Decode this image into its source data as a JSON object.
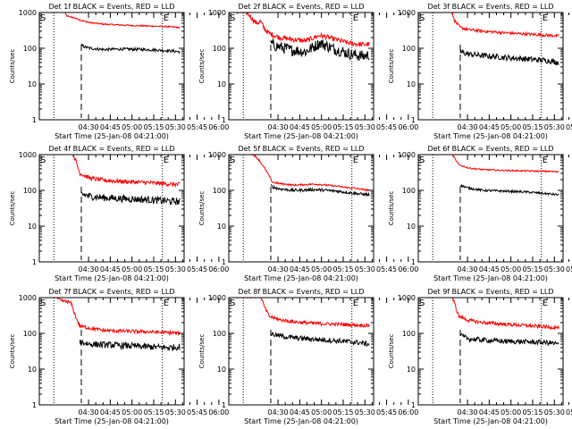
{
  "figure": {
    "ylabel": "Counts/sec",
    "xlabel": "Start Time (25-Jan-08 04:21:00)",
    "marker_start": "S",
    "marker_end": "E",
    "colors": {
      "events": "#000000",
      "lld": "#ff0000",
      "axes": "#000000"
    }
  },
  "chart_data": [
    {
      "type": "line",
      "title": "Det 1f BLACK = Events, RED = LLD",
      "x_ticks": [
        "04:30",
        "04:45",
        "05:00",
        "05:15",
        "05:30",
        "05:45",
        "06:00"
      ],
      "y_ticks": [
        "1",
        "10",
        "100",
        "1000"
      ],
      "ylim": [
        1,
        1000
      ],
      "y_scale": "log",
      "x_range_minutes": [
        -25,
        75
      ],
      "dotted_lines_minutes": [
        -15,
        60,
        75
      ],
      "dashed_line_minutes": 4,
      "series": [
        {
          "color": "red",
          "x_minutes": [
            -21,
            -8,
            -6,
            0,
            4,
            10,
            20,
            35,
            50,
            65,
            72
          ],
          "values": [
            1100,
            1100,
            800,
            700,
            600,
            520,
            470,
            440,
            420,
            400,
            380
          ],
          "noise": 0.02
        },
        {
          "color": "black",
          "x_minutes": [
            4,
            5,
            6,
            10,
            20,
            30,
            45,
            55,
            65,
            72
          ],
          "values": [
            120,
            118,
            110,
            100,
            92,
            95,
            93,
            90,
            85,
            80
          ],
          "noise": 0.04
        }
      ]
    },
    {
      "type": "line",
      "title": "Det 2f BLACK = Events, RED = LLD",
      "x_ticks": [
        "04:30",
        "04:45",
        "05:00",
        "05:15",
        "05:30",
        "05:45",
        "06:00"
      ],
      "y_ticks": [
        "1",
        "10",
        "100",
        "1000"
      ],
      "ylim": [
        1,
        1000
      ],
      "y_scale": "log",
      "x_range_minutes": [
        -25,
        75
      ],
      "dotted_lines_minutes": [
        -15,
        60,
        75
      ],
      "dashed_line_minutes": 4,
      "series": [
        {
          "color": "red",
          "x_minutes": [
            -21,
            -12,
            -6,
            -3,
            0,
            3,
            10,
            18,
            28,
            38,
            48,
            58,
            68,
            72
          ],
          "values": [
            1100,
            950,
            500,
            560,
            330,
            260,
            200,
            180,
            160,
            230,
            180,
            140,
            125,
            130
          ],
          "noise": 0.07
        },
        {
          "color": "black",
          "x_minutes": [
            4,
            6,
            10,
            18,
            28,
            38,
            48,
            58,
            68,
            72
          ],
          "values": [
            140,
            120,
            110,
            90,
            80,
            140,
            95,
            70,
            60,
            65
          ],
          "noise": 0.16
        }
      ]
    },
    {
      "type": "line",
      "title": "Det 3f BLACK = Events, RED = LLD",
      "x_ticks": [
        "04:30",
        "04:45",
        "05:00",
        "05:15",
        "05:30",
        "05:45",
        "06:00"
      ],
      "y_ticks": [
        "1",
        "10",
        "100",
        "1000"
      ],
      "ylim": [
        1,
        1000
      ],
      "y_scale": "log",
      "x_range_minutes": [
        -25,
        75
      ],
      "dotted_lines_minutes": [
        -15,
        60,
        75
      ],
      "dashed_line_minutes": 4,
      "series": [
        {
          "color": "red",
          "x_minutes": [
            -21,
            -2,
            0,
            4,
            10,
            20,
            35,
            50,
            65,
            72
          ],
          "values": [
            1100,
            1100,
            600,
            380,
            330,
            300,
            270,
            250,
            230,
            220
          ],
          "noise": 0.04
        },
        {
          "color": "black",
          "x_minutes": [
            4,
            6,
            10,
            20,
            35,
            50,
            65,
            72
          ],
          "values": [
            80,
            75,
            68,
            62,
            55,
            50,
            45,
            40
          ],
          "noise": 0.08
        }
      ]
    },
    {
      "type": "line",
      "title": "Det 4f BLACK = Events, RED = LLD",
      "x_ticks": [
        "04:30",
        "04:45",
        "05:00",
        "05:15",
        "05:30",
        "05:45",
        "06:00"
      ],
      "y_ticks": [
        "1",
        "10",
        "100",
        "1000"
      ],
      "ylim": [
        1,
        1000
      ],
      "y_scale": "log",
      "x_range_minutes": [
        -25,
        75
      ],
      "dotted_lines_minutes": [
        -15,
        60,
        75
      ],
      "dashed_line_minutes": 4,
      "series": [
        {
          "color": "red",
          "x_minutes": [
            -2,
            0,
            3,
            10,
            20,
            35,
            50,
            65,
            72
          ],
          "values": [
            1100,
            700,
            300,
            220,
            190,
            175,
            165,
            150,
            145
          ],
          "noise": 0.06
        },
        {
          "color": "black",
          "x_minutes": [
            4,
            6,
            10,
            20,
            35,
            50,
            65,
            72
          ],
          "values": [
            80,
            75,
            68,
            62,
            58,
            55,
            50,
            48
          ],
          "noise": 0.1
        }
      ]
    },
    {
      "type": "line",
      "title": "Det 5f BLACK = Events, RED = LLD",
      "x_ticks": [
        "04:30",
        "04:45",
        "05:00",
        "05:15",
        "05:30",
        "05:45",
        "06:00"
      ],
      "y_ticks": [
        "1",
        "10",
        "100",
        "1000"
      ],
      "ylim": [
        1,
        1000
      ],
      "y_scale": "log",
      "x_range_minutes": [
        -25,
        75
      ],
      "dotted_lines_minutes": [
        -15,
        60,
        75
      ],
      "dashed_line_minutes": 4,
      "series": [
        {
          "color": "red",
          "x_minutes": [
            -21,
            -12,
            -8,
            -4,
            0,
            3,
            5,
            10,
            20,
            35,
            50,
            65,
            72
          ],
          "values": [
            1100,
            1100,
            1000,
            700,
            400,
            250,
            170,
            155,
            140,
            150,
            130,
            110,
            100
          ],
          "noise": 0.025
        },
        {
          "color": "black",
          "x_minutes": [
            4,
            5,
            10,
            20,
            35,
            50,
            65,
            72
          ],
          "values": [
            140,
            125,
            110,
            100,
            105,
            95,
            80,
            75
          ],
          "noise": 0.04
        }
      ]
    },
    {
      "type": "line",
      "title": "Det 6f BLACK = Events, RED = LLD",
      "x_ticks": [
        "04:30",
        "04:45",
        "05:00",
        "05:15",
        "05:30",
        "05:45",
        "06:00"
      ],
      "y_ticks": [
        "1",
        "10",
        "100",
        "1000"
      ],
      "ylim": [
        1,
        1000
      ],
      "y_scale": "log",
      "x_range_minutes": [
        -25,
        75
      ],
      "dotted_lines_minutes": [
        -15,
        60,
        75
      ],
      "dashed_line_minutes": 4,
      "series": [
        {
          "color": "red",
          "x_minutes": [
            -2,
            0,
            3,
            10,
            20,
            35,
            50,
            65,
            72
          ],
          "values": [
            1100,
            800,
            520,
            420,
            380,
            360,
            350,
            340,
            330
          ],
          "noise": 0.02
        },
        {
          "color": "black",
          "x_minutes": [
            4,
            6,
            10,
            20,
            35,
            50,
            65,
            72
          ],
          "values": [
            140,
            130,
            115,
            100,
            95,
            90,
            80,
            75
          ],
          "noise": 0.03
        }
      ]
    },
    {
      "type": "line",
      "title": "Det 7f BLACK = Events, RED = LLD",
      "x_ticks": [
        "04:30",
        "04:45",
        "05:00",
        "05:15",
        "05:30",
        "05:45",
        "06:00"
      ],
      "y_ticks": [
        "1",
        "10",
        "100",
        "1000"
      ],
      "ylim": [
        1,
        1000
      ],
      "y_scale": "log",
      "x_range_minutes": [
        -25,
        75
      ],
      "dotted_lines_minutes": [
        -15,
        60,
        75
      ],
      "dashed_line_minutes": 4,
      "series": [
        {
          "color": "red",
          "x_minutes": [
            -21,
            -14,
            -10,
            -6,
            -3,
            0,
            3,
            10,
            20,
            35,
            50,
            65,
            72
          ],
          "values": [
            1100,
            1100,
            800,
            780,
            700,
            300,
            160,
            140,
            120,
            115,
            110,
            105,
            100
          ],
          "noise": 0.05
        },
        {
          "color": "black",
          "x_minutes": [
            3,
            5,
            10,
            20,
            35,
            50,
            65,
            72
          ],
          "values": [
            60,
            55,
            50,
            48,
            45,
            42,
            40,
            42
          ],
          "noise": 0.09
        }
      ]
    },
    {
      "type": "line",
      "title": "Det 8f BLACK = Events, RED = LLD",
      "x_ticks": [
        "04:30",
        "04:45",
        "05:00",
        "05:15",
        "05:30",
        "05:45",
        "06:00"
      ],
      "y_ticks": [
        "1",
        "10",
        "100",
        "1000"
      ],
      "ylim": [
        1,
        1000
      ],
      "y_scale": "log",
      "x_range_minutes": [
        -25,
        75
      ],
      "dotted_lines_minutes": [
        -15,
        60,
        75
      ],
      "dashed_line_minutes": 4,
      "series": [
        {
          "color": "red",
          "x_minutes": [
            -21,
            -3,
            0,
            3,
            10,
            20,
            35,
            50,
            65,
            72
          ],
          "values": [
            1100,
            1100,
            500,
            300,
            240,
            210,
            190,
            180,
            170,
            165
          ],
          "noise": 0.05
        },
        {
          "color": "black",
          "x_minutes": [
            4,
            5,
            10,
            20,
            35,
            50,
            65,
            72
          ],
          "values": [
            100,
            95,
            85,
            75,
            68,
            62,
            55,
            50
          ],
          "noise": 0.07
        }
      ]
    },
    {
      "type": "line",
      "title": "Det 9f BLACK = Events, RED = LLD",
      "x_ticks": [
        "04:30",
        "04:45",
        "05:00",
        "05:15",
        "05:30",
        "05:45",
        "06:00"
      ],
      "y_ticks": [
        "1",
        "10",
        "100",
        "1000"
      ],
      "ylim": [
        1,
        1000
      ],
      "y_scale": "log",
      "x_range_minutes": [
        -25,
        75
      ],
      "dotted_lines_minutes": [
        -15,
        60,
        75
      ],
      "dashed_line_minutes": 4,
      "series": [
        {
          "color": "red",
          "x_minutes": [
            -2,
            0,
            3,
            10,
            20,
            35,
            50,
            65,
            72
          ],
          "values": [
            1100,
            700,
            300,
            230,
            200,
            180,
            165,
            150,
            145
          ],
          "noise": 0.05
        },
        {
          "color": "black",
          "x_minutes": [
            4,
            6,
            10,
            20,
            35,
            50,
            65,
            72
          ],
          "values": [
            90,
            80,
            70,
            65,
            60,
            58,
            55,
            50
          ],
          "noise": 0.07
        }
      ]
    }
  ]
}
